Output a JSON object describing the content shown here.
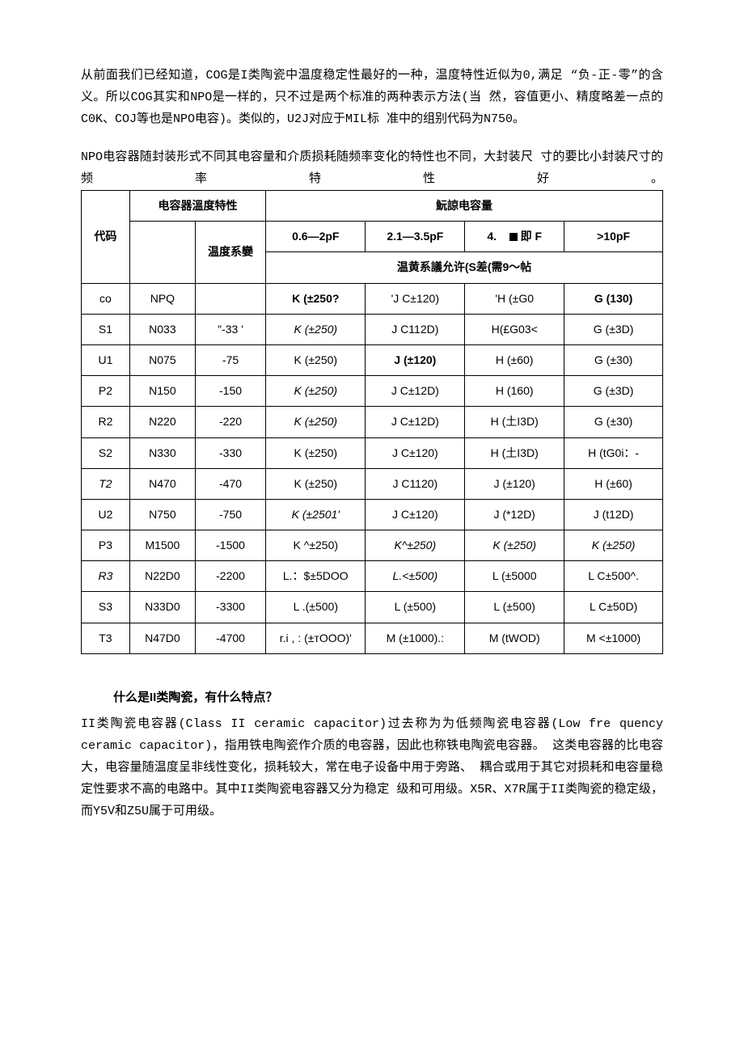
{
  "intro": {
    "p1": "从前面我们已经知道，COG是I类陶瓷中温度稳定性最好的一种，温度特性近似为0,满足 “负-正-零”的含义。所以COG其实和NPO是一样的，只不过是两个标准的两种表示方法(当 然，容值更小、精度略差一点的C0K、COJ等也是NPO电容)。类似的，U2J对应于MIL标 准中的组别代码为N750。",
    "p2": "NPO电容器随封装形式不同其电容量和介质损耗随频率变化的特性也不同，大封装尺 寸的要比小封装尺寸的频率特性好。"
  },
  "table": {
    "header": {
      "code": "代码",
      "tempChar": "电容器溫度特性",
      "nomCap": "魭諒电容量",
      "tempCoef": "温度系孌",
      "c1": "0.6—2pF",
      "c2": "2.1—3.5pF",
      "c3_prefix": "4.",
      "c3_suffix": "即 F",
      "c4": ">10pF",
      "sub": "温黄系議允许(S差(需9〜帖"
    },
    "rows": [
      {
        "code": "co",
        "t": "NPQ",
        "coef": "",
        "v1": "K (±250?",
        "v2": "'J C±120)",
        "v3": "'H (±G0",
        "v4": "G (130)",
        "b1": true,
        "b4": true
      },
      {
        "code": "S1",
        "t": "N033",
        "coef": "\"-33            '",
        "v1": "K (±250)",
        "v2": "J C112D)",
        "v3": "H(£G03<",
        "v4": "G (±3D)",
        "i1": true
      },
      {
        "code": "U1",
        "t": "N075",
        "coef": "-75",
        "v1": "K (±250)",
        "v2": "J (±120)",
        "v3": "H (±60)",
        "v4": "G (±30)",
        "b2": true
      },
      {
        "code": "P2",
        "t": "N150",
        "coef": "-150",
        "v1": "K (±250)",
        "v2": "J C±12D)",
        "v3": "H (160)",
        "v4": "G (±3D)",
        "i1": true
      },
      {
        "code": "R2",
        "t": "N220",
        "coef": "-220",
        "v1": "K (±250)",
        "v2": "J C±12D)",
        "v3": "H (土I3D)",
        "v4": "G (±30)",
        "i1": true
      },
      {
        "code": "S2",
        "t": "N330",
        "coef": "-330",
        "v1": "K (±250)",
        "v2": "J C±120)",
        "v3": "H (土I3D)",
        "v4": "H (tG0i：-"
      },
      {
        "code": "T2",
        "t": "N470",
        "coef": "-470",
        "v1": "K (±250)",
        "v2": "J C1120)",
        "v3": "J (±120)",
        "v4": "H (±60)",
        "iCode": true
      },
      {
        "code": "U2",
        "t": "N750",
        "coef": "-750",
        "v1": "K (±2501'",
        "v2": "J C±120)",
        "v3": "J (*12D)",
        "v4": "J (t12D)",
        "i1": true
      },
      {
        "code": "P3",
        "t": "M1500",
        "coef": "-1500",
        "v1": "K ^±250)",
        "v2": "K^±250)",
        "v3": "K (±250)",
        "v4": "K (±250)",
        "i2": true,
        "i3": true,
        "i4": true
      },
      {
        "code": "R3",
        "t": "N22D0",
        "coef": "-2200",
        "v1": "L.：$±5DOO",
        "v2": "L.<±500)",
        "v3": "L (±5000",
        "v4": "L C±500^.",
        "iCode": true,
        "i2": true
      },
      {
        "code": "S3",
        "t": "N33D0",
        "coef": "-3300",
        "v1": "L .(±500)",
        "v2": "L (±500)",
        "v3": "L (±500)",
        "v4": "L C±50D)"
      },
      {
        "code": "T3",
        "t": "N47D0",
        "coef": "-4700",
        "v1": "r.i , : (±тOOO)'",
        "v2": "M (±1000).:",
        "v3": "M (tWOD)",
        "v4": "M <±1000)"
      }
    ]
  },
  "section": {
    "title": "什么是II类陶瓷，有什么特点？",
    "body": "II类陶瓷电容器(Class II ceramic capacitor)过去称为为低频陶瓷电容器(Low fre quency ceramic capacitor)，指用铁电陶瓷作介质的电容器，因此也称铁电陶瓷电容器。 这类电容器的比电容大，电容量随温度呈非线性变化，损耗较大，常在电子设备中用于旁路、 耦合或用于其它对损耗和电容量稳定性要求不高的电路中。其中II类陶瓷电容器又分为稳定 级和可用级。X5R、X7R属于II类陶瓷的稳定级，而Y5V和Z5U属于可用级。"
  }
}
